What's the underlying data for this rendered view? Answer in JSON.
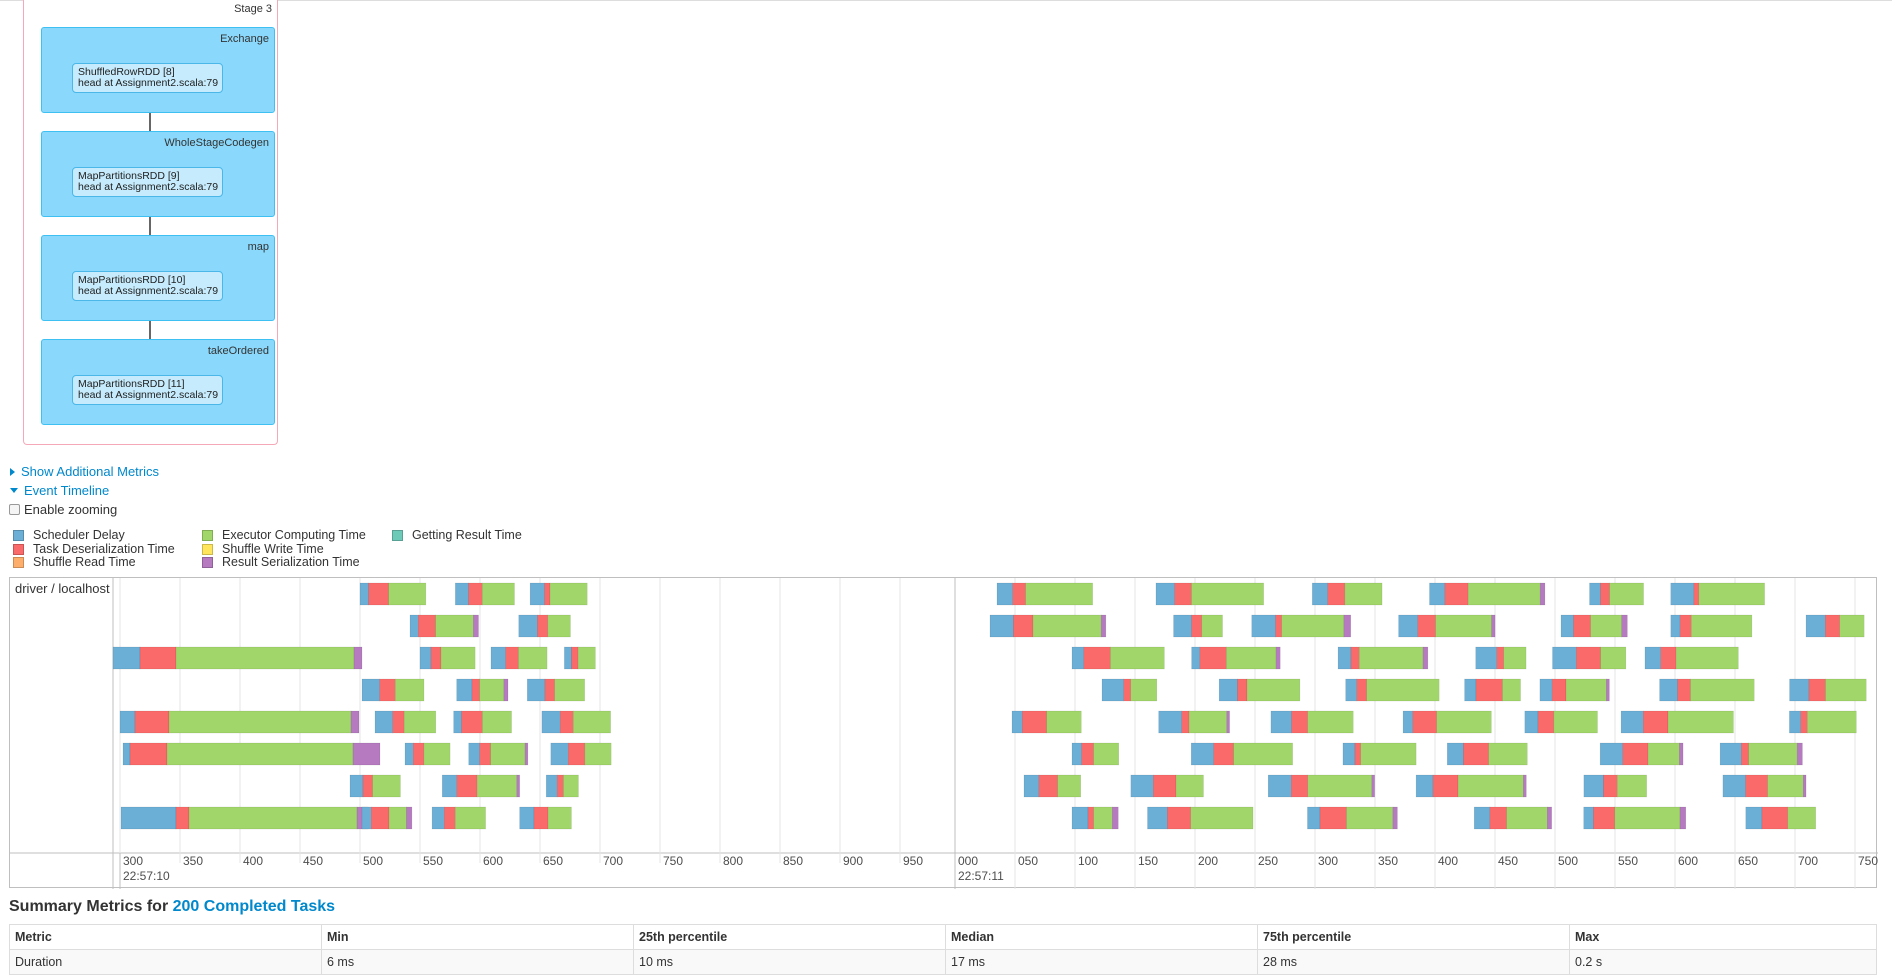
{
  "dag": {
    "stage_label": "Stage 3",
    "clusters": [
      {
        "label": "Exchange",
        "node_title": "ShuffledRowRDD [8]",
        "node_subtitle": "head at Assignment2.scala:79"
      },
      {
        "label": "WholeStageCodegen",
        "node_title": "MapPartitionsRDD [9]",
        "node_subtitle": "head at Assignment2.scala:79"
      },
      {
        "label": "map",
        "node_title": "MapPartitionsRDD [10]",
        "node_subtitle": "head at Assignment2.scala:79"
      },
      {
        "label": "takeOrdered",
        "node_title": "MapPartitionsRDD [11]",
        "node_subtitle": "head at Assignment2.scala:79"
      }
    ]
  },
  "toggles": {
    "additional_metrics": "Show Additional Metrics",
    "event_timeline": "Event Timeline",
    "enable_zooming": "Enable zooming"
  },
  "legend": [
    {
      "label": "Scheduler Delay",
      "color": "#6baed6"
    },
    {
      "label": "Task Deserialization Time",
      "color": "#fb6a6a"
    },
    {
      "label": "Shuffle Read Time",
      "color": "#fdae6b"
    },
    {
      "label": "Executor Computing Time",
      "color": "#a1d76a"
    },
    {
      "label": "Shuffle Write Time",
      "color": "#ffe55c"
    },
    {
      "label": "Result Serialization Time",
      "color": "#b57ac0"
    },
    {
      "label": "Getting Result Time",
      "color": "#6dc9b8"
    }
  ],
  "timeline": {
    "group_label": "driver / localhost",
    "axis_ticks_1": [
      "300",
      "350",
      "400",
      "450",
      "500",
      "550",
      "600",
      "650",
      "700",
      "750",
      "800",
      "850",
      "900",
      "950"
    ],
    "axis_ticks_2": [
      "000",
      "050",
      "100",
      "150",
      "200",
      "250",
      "300",
      "350",
      "400",
      "450",
      "500",
      "550",
      "600",
      "650",
      "700",
      "750"
    ],
    "axis_major_1": "22:57:10",
    "axis_major_2": "22:57:11"
  },
  "summary": {
    "title_prefix": "Summary Metrics for",
    "title_link": "200 Completed Tasks",
    "headers": [
      "Metric",
      "Min",
      "25th percentile",
      "Median",
      "75th percentile",
      "Max"
    ],
    "rows": [
      [
        "Duration",
        "6 ms",
        "10 ms",
        "17 ms",
        "28 ms",
        "0.2 s"
      ]
    ]
  }
}
